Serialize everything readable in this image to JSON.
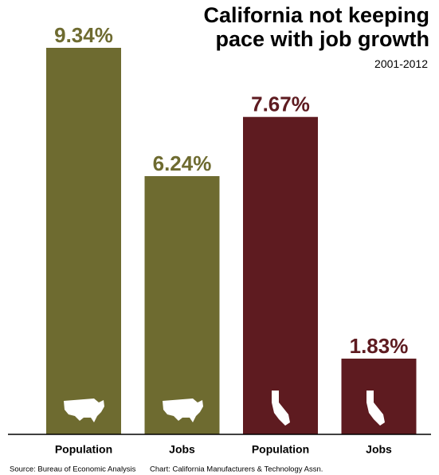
{
  "chart_data": {
    "type": "bar",
    "title": "California not keeping pace with job growth",
    "subtitle": "2001-2012",
    "categories": [
      "Population",
      "Jobs",
      "Population",
      "Jobs"
    ],
    "values": [
      9.34,
      6.24,
      7.67,
      1.83
    ],
    "value_labels": [
      "9.34%",
      "6.24%",
      "7.67%",
      "1.83%"
    ],
    "colors": [
      "#6e6b30",
      "#6e6b30",
      "#5e1b20",
      "#5e1b20"
    ],
    "source": "Source: Bureau of Economic Analysis",
    "credit": "Chart: California Manufacturers & Technology Assn."
  }
}
